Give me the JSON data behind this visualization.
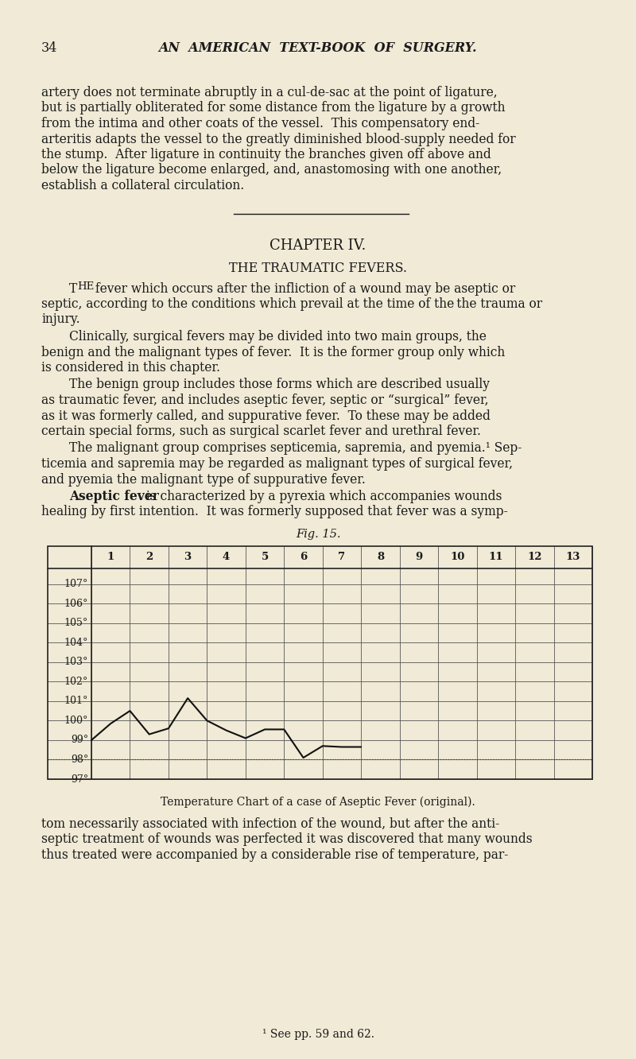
{
  "page_number": "34",
  "header_title": "AN  AMERICAN  TEXT-BOOK  OF  SURGERY.",
  "background_color": "#f0ead6",
  "text_color": "#1a1a1a",
  "para1_lines": [
    "artery does not terminate abruptly in a cul-de-sac at the point of ligature,",
    "but is partially obliterated for some distance from the ligature by a growth",
    "from the intima and other coats of the vessel.  This compensatory end-",
    "arteritis adapts the vessel to the greatly diminished blood-supply needed for",
    "the stump.  After ligature in continuity the branches given off above and",
    "below the ligature become enlarged, and, anastomosing with one another,",
    "establish a collateral circulation."
  ],
  "chapter_heading": "CHAPTER IV.",
  "section_heading": "THE TRAUMATIC FEVERS.",
  "body_paragraphs": [
    {
      "indent": true,
      "drop_cap": "THE",
      "drop_cap_style": "smallcaps",
      "text": " fever which occurs after the infliction of a wound may be aseptic or",
      "continuation": " septic, according to the conditions which prevail at the time of the trauma or",
      "lines": [
        "ᴛʜᴇ fever which occurs after the infliction of a wound may be aseptic or",
        "septic, according to the conditions which prevail at the time of the trauma or",
        "injury."
      ]
    },
    {
      "indent": true,
      "lines": [
        "Clinically, surgical fevers may be divided into two main groups, the",
        "benign and the malignant types of fever.  It is the former group only which",
        "is considered in this chapter."
      ]
    },
    {
      "indent": true,
      "lines": [
        "The benign group includes those forms which are described usually",
        "as traumatic fever, and includes aseptic fever, septic or “surgical” fever,",
        "as it was formerly called, and suppurative fever.  To these may be added",
        "certain special forms, such as surgical scarlet fever and urethral fever."
      ]
    },
    {
      "indent": true,
      "lines": [
        "The malignant group comprises septicemia, sapremia, and pyemia.¹ Sep-",
        "ticemia and sapremia may be regarded as malignant types of surgical fever,",
        "and pyemia the malignant type of suppurative fever."
      ]
    },
    {
      "indent": true,
      "bold_prefix": "Aseptic fever",
      "lines": [
        " is characterized by a pyrexia which accompanies wounds",
        "healing by first intention.  It was formerly supposed that fever was a symp-"
      ]
    }
  ],
  "fig_label": "Fig. 15.",
  "chart_caption": "Temperature Chart of a case of Aseptic Fever (original).",
  "x_labels": [
    "1",
    "2",
    "3",
    "4",
    "5",
    "6",
    "7",
    "8",
    "9",
    "10",
    "11",
    "12",
    "13"
  ],
  "y_ticks": [
    97,
    98,
    99,
    100,
    101,
    102,
    103,
    104,
    105,
    106,
    107
  ],
  "y_min": 97,
  "y_max": 107.8,
  "dotted_line_y": 98.0,
  "temp_x": [
    1.0,
    1.5,
    2.0,
    2.5,
    3.0,
    3.5,
    4.0,
    4.5,
    5.0,
    5.5,
    6.0,
    6.5,
    7.0,
    7.5,
    8.0
  ],
  "temp_y": [
    99.0,
    99.85,
    100.5,
    99.3,
    99.6,
    101.15,
    100.0,
    99.5,
    99.1,
    99.55,
    99.55,
    98.1,
    98.7,
    98.65,
    98.65
  ],
  "footer_lines": [
    "tom necessarily associated with infection of the wound, but after the anti-",
    "septic treatment of wounds was perfected it was discovered that many wounds",
    "thus treated were accompanied by a considerable rise of temperature, par-"
  ],
  "footnote": "¹ See pp. 59 and 62."
}
